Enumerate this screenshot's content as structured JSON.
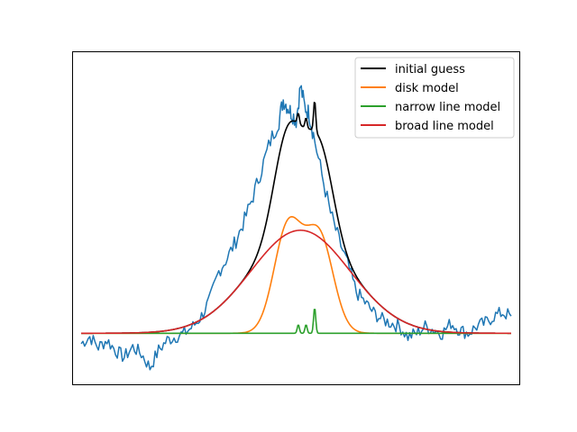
{
  "chart_data": {
    "type": "line",
    "title": "",
    "xlabel": "",
    "ylabel": "",
    "grid": false,
    "ticks_visible": false,
    "legend_position": "top-right",
    "xlim": [
      -0.02,
      1.02
    ],
    "ylim": [
      -0.15,
      0.82
    ],
    "series": [
      {
        "name": "",
        "color": "#1f77b4",
        "x": [
          0.0,
          0.02,
          0.04,
          0.06,
          0.08,
          0.1,
          0.12,
          0.14,
          0.16,
          0.18,
          0.2,
          0.22,
          0.24,
          0.26,
          0.28,
          0.3,
          0.32,
          0.34,
          0.36,
          0.38,
          0.4,
          0.42,
          0.44,
          0.46,
          0.47,
          0.48,
          0.49,
          0.5,
          0.51,
          0.52,
          0.53,
          0.54,
          0.56,
          0.58,
          0.6,
          0.62,
          0.64,
          0.66,
          0.68,
          0.7,
          0.72,
          0.74,
          0.76,
          0.78,
          0.8,
          0.82,
          0.84,
          0.86,
          0.88,
          0.9,
          0.92,
          0.94,
          0.96,
          0.98,
          1.0
        ],
        "y": [
          -0.03,
          -0.01,
          -0.04,
          -0.02,
          -0.05,
          -0.07,
          -0.04,
          -0.06,
          -0.1,
          -0.05,
          -0.02,
          -0.01,
          0.0,
          0.02,
          0.05,
          0.1,
          0.18,
          0.22,
          0.27,
          0.33,
          0.4,
          0.48,
          0.56,
          0.62,
          0.68,
          0.66,
          0.64,
          0.62,
          0.72,
          0.66,
          0.64,
          0.58,
          0.46,
          0.35,
          0.27,
          0.2,
          0.12,
          0.09,
          0.06,
          0.04,
          0.03,
          0.02,
          -0.01,
          0.0,
          0.02,
          0.01,
          0.0,
          0.03,
          0.01,
          0.0,
          0.02,
          0.03,
          0.05,
          0.06,
          0.05
        ]
      },
      {
        "name": "initial guess",
        "color": "#000000",
        "model": "total"
      },
      {
        "name": "disk model",
        "color": "#ff7f0e",
        "model": "disk"
      },
      {
        "name": "narrow line model",
        "color": "#2ca02c",
        "model": "narrow"
      },
      {
        "name": "broad line model",
        "color": "#d62728",
        "model": "broad"
      }
    ],
    "legend": [
      {
        "label": "initial guess",
        "color": "#000000"
      },
      {
        "label": "disk model",
        "color": "#ff7f0e"
      },
      {
        "label": "narrow line model",
        "color": "#2ca02c"
      },
      {
        "label": "broad line model",
        "color": "#d62728"
      }
    ]
  }
}
